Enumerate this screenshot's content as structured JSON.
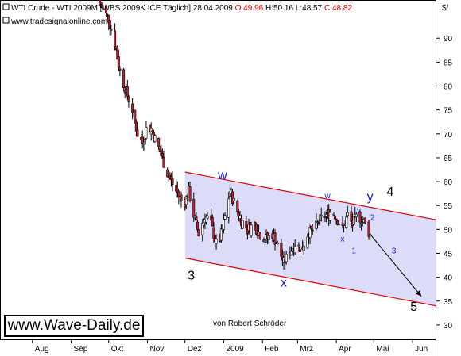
{
  "header": {
    "title": "WTI Crude - WTI 2009M [WBS 2009K ICE  Täglich]",
    "date": "28.04.2009",
    "open": "O:49.96",
    "high": "H:50.16",
    "low": "L:48.57",
    "close": "C:48.82",
    "unit": "$/",
    "source_url": "www.tradesignalonline.com"
  },
  "branding": {
    "site": "www.Wave-Daily.de",
    "author": "von Robert Schröder"
  },
  "colors": {
    "candle_up": "#ffffff",
    "candle_down": "#cc1f33",
    "wick": "#000000",
    "channel_line": "#e00000",
    "channel_fill": "#dcdcf8",
    "wave_label_blue": "#1a1acd",
    "close_red": "#e00000"
  },
  "chart_data": {
    "type": "candlestick",
    "y_axis": {
      "range": [
        27,
        98
      ],
      "ticks": [
        30,
        35,
        40,
        45,
        50,
        55,
        60,
        65,
        70,
        75,
        80,
        85,
        90
      ],
      "side": "right",
      "grid": false
    },
    "x_axis": {
      "ticks": [
        "Aug",
        "Sep",
        "Okt",
        "Nov",
        "Dez",
        "2009",
        "Feb",
        "Mrz",
        "Apr",
        "Mai",
        "Jun"
      ],
      "tick_dates": [
        "2008-08-01",
        "2008-09-01",
        "2008-10-01",
        "2008-11-01",
        "2008-12-01",
        "2009-01-01",
        "2009-02-01",
        "2009-03-01",
        "2009-04-01",
        "2009-05-01",
        "2009-06-01"
      ],
      "range": [
        "2008-07-15",
        "2009-06-20"
      ]
    },
    "price_path": [
      [
        "2008-09-24",
        97
      ],
      [
        "2008-10-01",
        94
      ],
      [
        "2008-10-06",
        89
      ],
      [
        "2008-10-10",
        83
      ],
      [
        "2008-10-16",
        78
      ],
      [
        "2008-10-20",
        75
      ],
      [
        "2008-10-24",
        70
      ],
      [
        "2008-10-28",
        68
      ],
      [
        "2008-11-01",
        72
      ],
      [
        "2008-11-04",
        71
      ],
      [
        "2008-11-10",
        67
      ],
      [
        "2008-11-14",
        64
      ],
      [
        "2008-11-18",
        61
      ],
      [
        "2008-11-22",
        59
      ],
      [
        "2008-11-26",
        57
      ],
      [
        "2008-11-30",
        55
      ],
      [
        "2008-12-04",
        58
      ],
      [
        "2008-12-08",
        53
      ],
      [
        "2008-12-12",
        49
      ],
      [
        "2008-12-17",
        53
      ],
      [
        "2008-12-22",
        51
      ],
      [
        "2008-12-27",
        46
      ],
      [
        "2008-12-31",
        50
      ],
      [
        "2009-01-06",
        58
      ],
      [
        "2009-01-10",
        55
      ],
      [
        "2009-01-15",
        52
      ],
      [
        "2009-01-20",
        50
      ],
      [
        "2009-01-25",
        51
      ],
      [
        "2009-01-30",
        49
      ],
      [
        "2009-02-04",
        48
      ],
      [
        "2009-02-09",
        49
      ],
      [
        "2009-02-14",
        46
      ],
      [
        "2009-02-18",
        43
      ],
      [
        "2009-02-22",
        45
      ],
      [
        "2009-02-27",
        47
      ],
      [
        "2009-03-04",
        46
      ],
      [
        "2009-03-09",
        49
      ],
      [
        "2009-03-14",
        50
      ],
      [
        "2009-03-19",
        52
      ],
      [
        "2009-03-24",
        53
      ],
      [
        "2009-03-29",
        54
      ],
      [
        "2009-04-02",
        52
      ],
      [
        "2009-04-06",
        50
      ],
      [
        "2009-04-10",
        53
      ],
      [
        "2009-04-14",
        51
      ],
      [
        "2009-04-18",
        53
      ],
      [
        "2009-04-22",
        52
      ],
      [
        "2009-04-26",
        50
      ],
      [
        "2009-04-28",
        48.82
      ]
    ],
    "channel": {
      "upper": [
        [
          "2008-12-01",
          62
        ],
        [
          "2009-06-20",
          52
        ]
      ],
      "lower": [
        [
          "2008-12-01",
          44
        ],
        [
          "2009-06-20",
          34
        ]
      ]
    },
    "projection": [
      [
        "2009-04-28",
        49
      ],
      [
        "2009-06-08",
        36
      ]
    ],
    "wave_labels": [
      {
        "text": "w",
        "date": "2008-12-31",
        "price": 60.5,
        "style": "blue"
      },
      {
        "text": "3",
        "date": "2008-12-06",
        "price": 39.5,
        "style": "big"
      },
      {
        "text": "x",
        "date": "2009-02-18",
        "price": 38,
        "style": "blue"
      },
      {
        "text": "w",
        "date": "2009-03-25",
        "price": 56.5,
        "style": "small"
      },
      {
        "text": "x",
        "date": "2009-04-06",
        "price": 47.5,
        "style": "small"
      },
      {
        "text": "y",
        "date": "2009-04-19",
        "price": 53.5,
        "style": "small"
      },
      {
        "text": "y",
        "date": "2009-04-28",
        "price": 56,
        "style": "blue"
      },
      {
        "text": "4",
        "date": "2009-05-14",
        "price": 57,
        "style": "big"
      },
      {
        "text": "2",
        "date": "2009-04-30",
        "price": 52,
        "style": "small"
      },
      {
        "text": "1",
        "date": "2009-04-15",
        "price": 45,
        "style": "small"
      },
      {
        "text": "3",
        "date": "2009-05-17",
        "price": 45,
        "style": "small"
      },
      {
        "text": "5",
        "date": "2009-06-02",
        "price": 33,
        "style": "big"
      }
    ]
  }
}
